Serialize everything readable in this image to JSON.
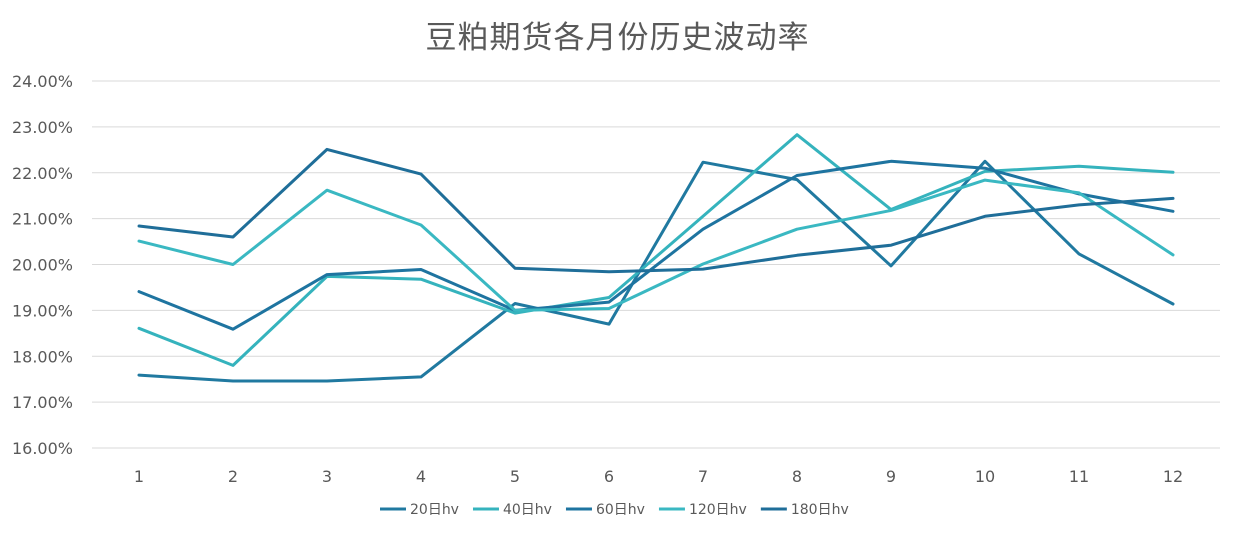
{
  "chart_data": {
    "type": "line",
    "title": "豆粕期货各月份历史波动率",
    "xlabel": "",
    "ylabel": "",
    "categories": [
      "1",
      "2",
      "3",
      "4",
      "5",
      "6",
      "7",
      "8",
      "9",
      "10",
      "11",
      "12"
    ],
    "y_tick_labels": [
      "16.00%",
      "17.00%",
      "18.00%",
      "19.00%",
      "20.00%",
      "21.00%",
      "22.00%",
      "23.00%",
      "24.00%"
    ],
    "ylim": [
      16,
      24
    ],
    "grid": true,
    "legend_position": "bottom",
    "series": [
      {
        "name": "20日hv",
        "color": "#2079a0",
        "values": [
          17.59,
          17.46,
          17.46,
          17.55,
          19.15,
          18.7,
          22.23,
          21.85,
          19.97,
          22.25,
          20.23,
          19.14
        ]
      },
      {
        "name": "40日hv",
        "color": "#35b3bd",
        "values": [
          18.61,
          17.8,
          19.74,
          19.68,
          18.94,
          19.28,
          21.05,
          22.83,
          21.2,
          22.03,
          22.14,
          22.01
        ]
      },
      {
        "name": "60日hv",
        "color": "#1e74a0",
        "values": [
          19.41,
          18.59,
          19.78,
          19.89,
          19.0,
          19.18,
          20.77,
          21.94,
          22.25,
          22.1,
          21.54,
          21.16
        ]
      },
      {
        "name": "120日hv",
        "color": "#3ab8c2",
        "values": [
          20.51,
          20.0,
          21.62,
          20.86,
          19.0,
          19.04,
          20.01,
          20.77,
          21.18,
          21.84,
          21.56,
          20.21
        ]
      },
      {
        "name": "180日hv",
        "color": "#1f6e99",
        "values": [
          20.84,
          20.6,
          22.51,
          21.97,
          19.92,
          19.84,
          19.9,
          20.2,
          20.42,
          21.05,
          21.3,
          21.44
        ]
      }
    ]
  }
}
